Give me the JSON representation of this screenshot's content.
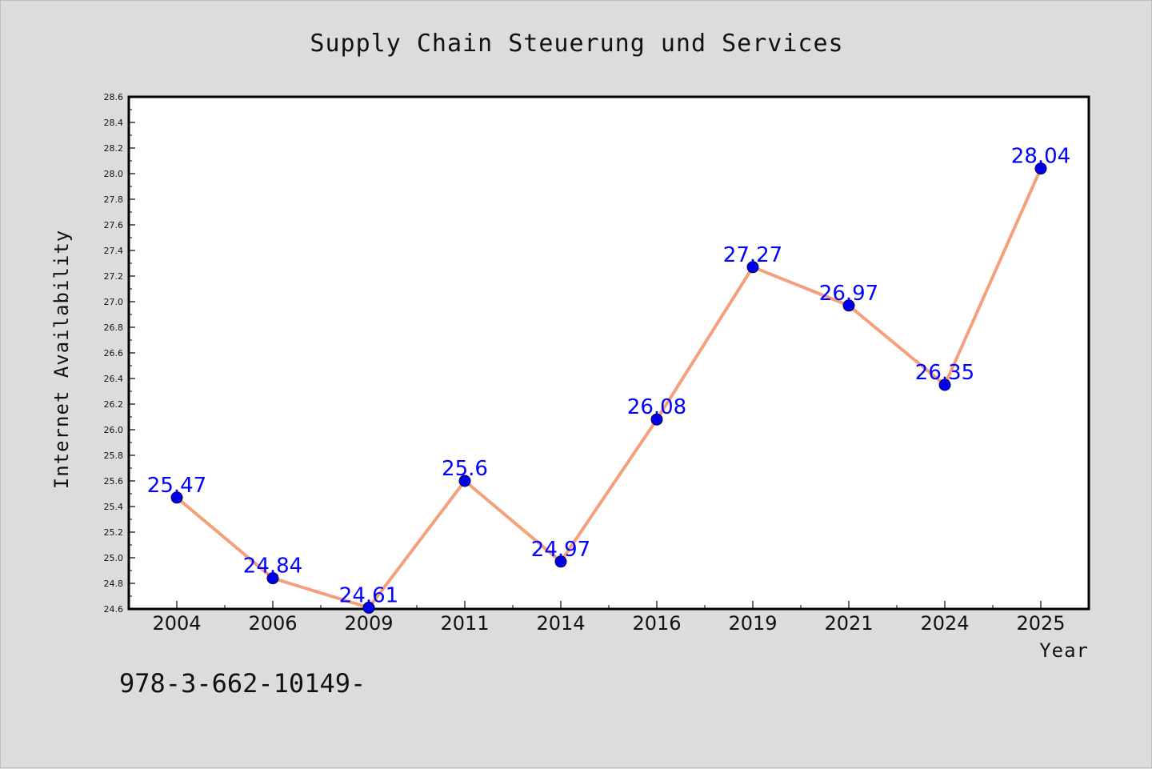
{
  "chart_data": {
    "type": "line",
    "title": "Supply Chain Steuerung und Services",
    "xlabel": "Year",
    "ylabel": "Internet Availability",
    "categories": [
      "2004",
      "2006",
      "2009",
      "2011",
      "2014",
      "2016",
      "2019",
      "2021",
      "2024",
      "2025"
    ],
    "series": [
      {
        "values": [
          25.47,
          24.84,
          24.61,
          25.6,
          24.97,
          26.08,
          27.27,
          26.97,
          26.35,
          28.04
        ],
        "line_color": "#f4a07c",
        "marker_color": "#0000ee"
      }
    ],
    "data_labels": [
      "25.47",
      "24.84",
      "24.61",
      "25.6",
      "24.97",
      "26.08",
      "27.27",
      "26.97",
      "26.35",
      "28.04"
    ],
    "ylim": [
      24.6,
      28.6
    ],
    "yticks": [
      "24.6",
      "24.8",
      "25.0",
      "25.2",
      "25.4",
      "25.6",
      "25.8",
      "26.0",
      "26.2",
      "26.4",
      "26.6",
      "26.8",
      "27.0",
      "27.2",
      "27.4",
      "27.6",
      "27.8",
      "28.0",
      "28.2",
      "28.4",
      "28.6"
    ],
    "grid": false,
    "legend": "none",
    "label_color": "#0000ff",
    "background_color": "#dcdcdc",
    "plot_background": "#ffffff"
  },
  "footnote": "978-3-662-10149-"
}
